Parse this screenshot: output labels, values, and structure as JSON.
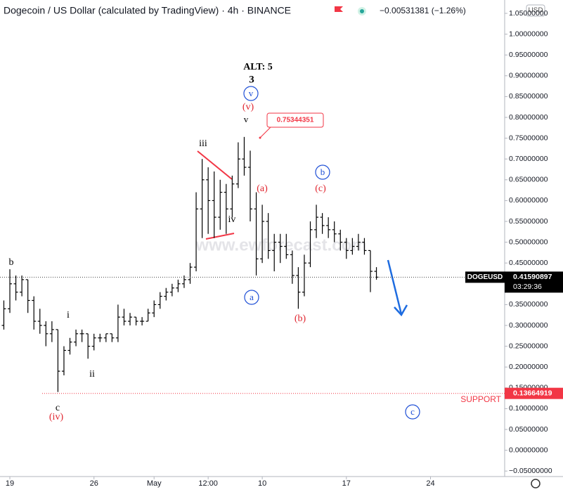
{
  "chart_data": {
    "type": "ohlc",
    "title": "Dogecoin / US Dollar (calculated by TradingView) · 4h · BINANCE",
    "change": "−0.00531381 (−1.26%)",
    "currency": "USD",
    "watermark": "www.ewforecast.com",
    "x": [
      -0.5,
      0,
      0.5,
      1,
      1.5,
      2,
      2.5,
      3,
      3.5,
      4,
      4.5,
      5,
      5.5,
      6,
      6.5,
      7,
      7.5,
      8,
      8.5,
      9,
      9.5,
      10,
      10.5,
      11,
      11.5,
      12,
      12.5,
      13,
      13.5,
      14,
      14.5,
      15,
      15.5,
      16,
      16.5,
      17,
      17.5,
      18,
      18.5,
      19,
      19.5,
      20,
      20.5,
      21,
      21.5,
      22,
      22.5,
      23,
      23.5,
      24,
      24.5,
      25,
      25.5,
      26,
      26.5,
      27,
      27.5,
      28,
      28.5,
      29,
      29.5,
      30,
      30.5
    ],
    "series": [
      {
        "name": "DOGEUSD",
        "color": "#000000",
        "open": [
          0.3,
          0.34,
          0.4,
          0.38,
          0.41,
          0.36,
          0.31,
          0.3,
          0.28,
          0.29,
          0.19,
          0.24,
          0.26,
          0.28,
          0.28,
          0.25,
          0.27,
          0.27,
          0.28,
          0.27,
          0.32,
          0.31,
          0.32,
          0.31,
          0.31,
          0.33,
          0.35,
          0.37,
          0.38,
          0.39,
          0.4,
          0.41,
          0.44,
          0.58,
          0.65,
          0.6,
          0.56,
          0.62,
          0.58,
          0.64,
          0.7,
          0.68,
          0.58,
          0.46,
          0.55,
          0.48,
          0.5,
          0.49,
          0.47,
          0.42,
          0.38,
          0.45,
          0.53,
          0.56,
          0.54,
          0.53,
          0.52,
          0.5,
          0.48,
          0.49,
          0.5,
          0.48,
          0.43
        ],
        "high": [
          0.36,
          0.435,
          0.42,
          0.42,
          0.41,
          0.37,
          0.34,
          0.31,
          0.31,
          0.29,
          0.25,
          0.27,
          0.29,
          0.29,
          0.28,
          0.28,
          0.28,
          0.28,
          0.28,
          0.35,
          0.34,
          0.33,
          0.32,
          0.32,
          0.34,
          0.36,
          0.38,
          0.39,
          0.4,
          0.41,
          0.42,
          0.45,
          0.62,
          0.7,
          0.68,
          0.67,
          0.65,
          0.64,
          0.66,
          0.74,
          0.753,
          0.72,
          0.62,
          0.59,
          0.57,
          0.52,
          0.52,
          0.52,
          0.48,
          0.44,
          0.47,
          0.55,
          0.59,
          0.57,
          0.56,
          0.55,
          0.53,
          0.51,
          0.51,
          0.52,
          0.51,
          0.48,
          0.44
        ],
        "low": [
          0.29,
          0.33,
          0.36,
          0.37,
          0.33,
          0.29,
          0.28,
          0.25,
          0.26,
          0.14,
          0.18,
          0.23,
          0.25,
          0.26,
          0.22,
          0.24,
          0.26,
          0.26,
          0.26,
          0.26,
          0.3,
          0.3,
          0.3,
          0.3,
          0.31,
          0.32,
          0.34,
          0.36,
          0.37,
          0.38,
          0.39,
          0.4,
          0.43,
          0.51,
          0.52,
          0.51,
          0.53,
          0.52,
          0.56,
          0.63,
          0.66,
          0.55,
          0.42,
          0.45,
          0.46,
          0.43,
          0.45,
          0.46,
          0.4,
          0.34,
          0.37,
          0.44,
          0.51,
          0.52,
          0.51,
          0.5,
          0.48,
          0.46,
          0.47,
          0.48,
          0.47,
          0.38,
          0.41
        ],
        "close": [
          0.34,
          0.4,
          0.38,
          0.41,
          0.36,
          0.31,
          0.3,
          0.28,
          0.29,
          0.19,
          0.24,
          0.26,
          0.28,
          0.28,
          0.25,
          0.27,
          0.27,
          0.28,
          0.27,
          0.32,
          0.31,
          0.32,
          0.31,
          0.31,
          0.33,
          0.35,
          0.37,
          0.38,
          0.39,
          0.4,
          0.41,
          0.44,
          0.58,
          0.65,
          0.6,
          0.56,
          0.62,
          0.58,
          0.64,
          0.7,
          0.68,
          0.58,
          0.46,
          0.55,
          0.48,
          0.5,
          0.49,
          0.47,
          0.42,
          0.38,
          0.45,
          0.53,
          0.56,
          0.54,
          0.53,
          0.52,
          0.5,
          0.48,
          0.49,
          0.5,
          0.48,
          0.43,
          0.4159
        ]
      }
    ],
    "last_price": 0.41590897,
    "countdown": "03:29:36",
    "support": {
      "label": "SUPPORT",
      "value": 0.13664919
    },
    "callout": 0.75344351,
    "annotations": [
      "ALT: 5",
      "3",
      "v",
      "(v)",
      "v",
      "iii",
      "iv",
      "(a)",
      "a",
      "(b)",
      "b",
      "(c)",
      "b",
      "i",
      "ii",
      "c",
      "(iv)",
      "c"
    ],
    "xlim": [
      -0.82,
      41.17
    ],
    "xticks": [
      {
        "value": 0,
        "label": "19"
      },
      {
        "value": 7,
        "label": "26"
      },
      {
        "value": 12,
        "label": "May"
      },
      {
        "value": 16.5,
        "label": "12:00"
      },
      {
        "value": 21,
        "label": "10"
      },
      {
        "value": 28,
        "label": "17"
      },
      {
        "value": 35,
        "label": "24"
      }
    ],
    "ylim": [
      -0.0632,
      1.0821
    ],
    "yticks": [
      {
        "value": -0.05,
        "label": "−0.05000000"
      },
      {
        "value": 0,
        "label": "0.00000000"
      },
      {
        "value": 0.05,
        "label": "0.05000000"
      },
      {
        "value": 0.1,
        "label": "0.10000000"
      },
      {
        "value": 0.15,
        "label": "0.15000000"
      },
      {
        "value": 0.2,
        "label": "0.20000000"
      },
      {
        "value": 0.25,
        "label": "0.25000000"
      },
      {
        "value": 0.3,
        "label": "0.30000000"
      },
      {
        "value": 0.35,
        "label": "0.35000000"
      },
      {
        "value": 0.4,
        "label": "0.40000000"
      },
      {
        "value": 0.45,
        "label": "0.45000000"
      },
      {
        "value": 0.5,
        "label": "0.50000000"
      },
      {
        "value": 0.55,
        "label": "0.55000000"
      },
      {
        "value": 0.6,
        "label": "0.60000000"
      },
      {
        "value": 0.65,
        "label": "0.65000000"
      },
      {
        "value": 0.7,
        "label": "0.70000000"
      },
      {
        "value": 0.75,
        "label": "0.75000000"
      },
      {
        "value": 0.8,
        "label": "0.80000000"
      },
      {
        "value": 0.85,
        "label": "0.85000000"
      },
      {
        "value": 0.9,
        "label": "0.90000000"
      },
      {
        "value": 0.95,
        "label": "0.95000000"
      },
      {
        "value": 1,
        "label": "1.00000000"
      },
      {
        "value": 1.05,
        "label": "1.05000000"
      }
    ],
    "grid": false
  }
}
